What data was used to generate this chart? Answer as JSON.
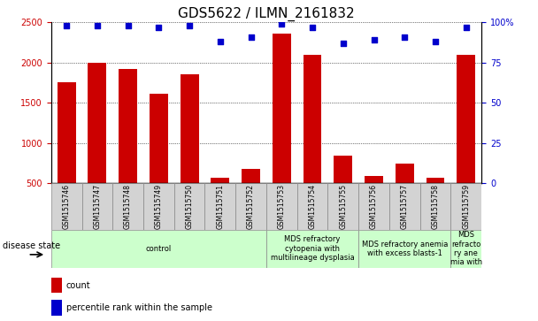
{
  "title": "GDS5622 / ILMN_2161832",
  "samples": [
    "GSM1515746",
    "GSM1515747",
    "GSM1515748",
    "GSM1515749",
    "GSM1515750",
    "GSM1515751",
    "GSM1515752",
    "GSM1515753",
    "GSM1515754",
    "GSM1515755",
    "GSM1515756",
    "GSM1515757",
    "GSM1515758",
    "GSM1515759"
  ],
  "counts": [
    1750,
    2000,
    1920,
    1610,
    1850,
    570,
    670,
    2360,
    2100,
    840,
    590,
    740,
    560,
    2100
  ],
  "percentile_ranks": [
    98,
    98,
    98,
    97,
    98,
    88,
    91,
    99,
    97,
    87,
    89,
    91,
    88,
    97
  ],
  "bar_color": "#cc0000",
  "dot_color": "#0000cc",
  "ylim_left": [
    500,
    2500
  ],
  "ylim_right": [
    0,
    100
  ],
  "yticks_left": [
    500,
    1000,
    1500,
    2000,
    2500
  ],
  "yticks_right": [
    0,
    25,
    50,
    75,
    100
  ],
  "ytick_labels_right": [
    "0",
    "25",
    "50",
    "75",
    "100%"
  ],
  "disease_groups": [
    {
      "label": "control",
      "start": 0,
      "end": 7
    },
    {
      "label": "MDS refractory\ncytopenia with\nmultilineage dysplasia",
      "start": 7,
      "end": 10
    },
    {
      "label": "MDS refractory anemia\nwith excess blasts-1",
      "start": 10,
      "end": 13
    },
    {
      "label": "MDS\nrefracto\nry ane\nmia with",
      "start": 13,
      "end": 14
    }
  ],
  "disease_state_label": "disease state",
  "legend_count_label": "count",
  "legend_percentile_label": "percentile rank within the sample",
  "title_fontsize": 11,
  "tick_fontsize": 7,
  "label_fontsize": 7,
  "sample_fontsize": 5.5,
  "disease_fontsize": 6,
  "legend_fontsize": 7,
  "bar_color_legend": "#cc0000",
  "dot_color_legend": "#0000cc",
  "sample_bg": "#d3d3d3",
  "disease_bg": "#ccffcc",
  "disease_border": "#888888"
}
